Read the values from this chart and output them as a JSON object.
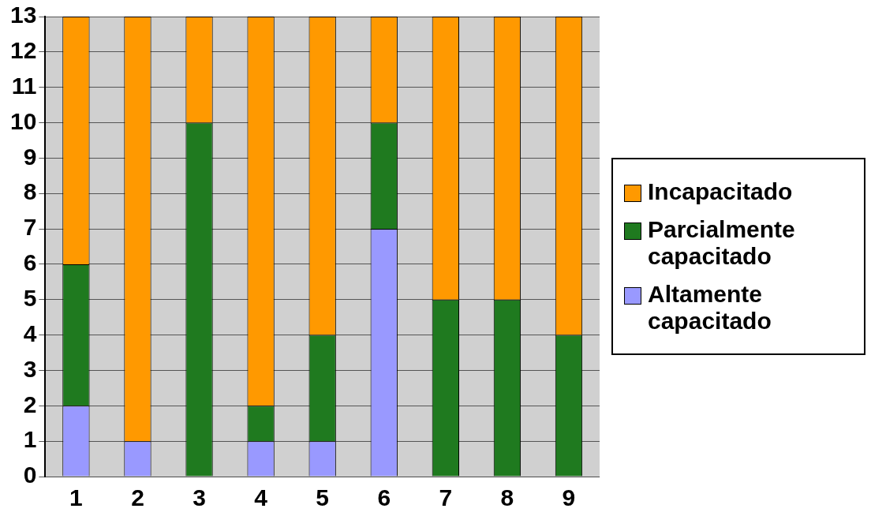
{
  "chart_data": {
    "type": "bar",
    "stacked": true,
    "categories": [
      "1",
      "2",
      "3",
      "4",
      "5",
      "6",
      "7",
      "8",
      "9"
    ],
    "series": [
      {
        "name": "Altamente capacitado",
        "color": "#9999ff",
        "values": [
          2,
          1,
          0,
          1,
          1,
          7,
          0,
          0,
          0
        ]
      },
      {
        "name": "Parcialmente capacitado",
        "color": "#1f7a1f",
        "values": [
          4,
          0,
          10,
          1,
          3,
          3,
          5,
          5,
          4
        ]
      },
      {
        "name": "Incapacitado",
        "color": "#ff9900",
        "values": [
          7,
          12,
          3,
          11,
          9,
          3,
          8,
          8,
          9
        ]
      }
    ],
    "ylim": [
      0,
      13
    ],
    "yticks": [
      0,
      1,
      2,
      3,
      4,
      5,
      6,
      7,
      8,
      9,
      10,
      11,
      12,
      13
    ],
    "grid": "y",
    "legend": "right"
  }
}
